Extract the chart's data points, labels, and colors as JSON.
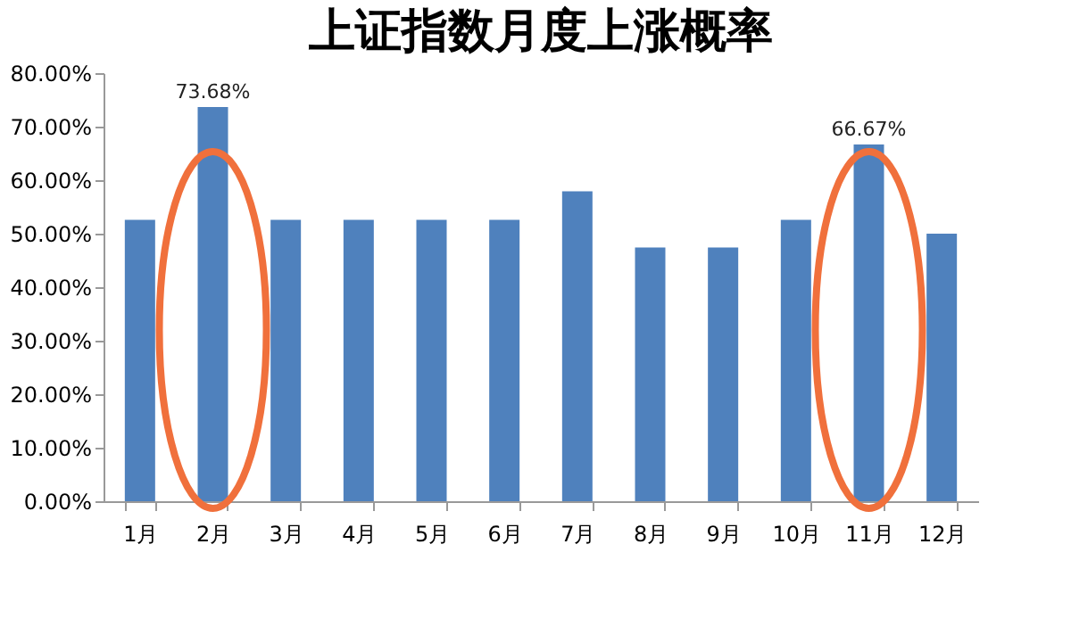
{
  "chart_data": {
    "type": "bar",
    "title": "上证指数月度上涨概率",
    "categories": [
      "1月",
      "2月",
      "3月",
      "4月",
      "5月",
      "6月",
      "7月",
      "8月",
      "9月",
      "10月",
      "11月",
      "12月"
    ],
    "values": [
      52.6,
      73.68,
      52.6,
      52.6,
      52.6,
      52.6,
      57.9,
      47.4,
      47.4,
      52.6,
      66.67,
      50.0
    ],
    "value_labels": [
      null,
      "73.68%",
      null,
      null,
      null,
      null,
      null,
      null,
      null,
      null,
      "66.67%",
      null
    ],
    "color": "#4f81bd",
    "ylim": [
      0,
      80
    ],
    "yticks": [
      {
        "value": 0,
        "label": "0.00%"
      },
      {
        "value": 10,
        "label": "10.00%"
      },
      {
        "value": 20,
        "label": "20.00%"
      },
      {
        "value": 30,
        "label": "30.00%"
      },
      {
        "value": 40,
        "label": "40.00%"
      },
      {
        "value": 50,
        "label": "50.00%"
      },
      {
        "value": 60,
        "label": "60.00%"
      },
      {
        "value": 70,
        "label": "70.00%"
      },
      {
        "value": 80,
        "label": "80.00%"
      }
    ],
    "grid": false,
    "legend": false
  }
}
